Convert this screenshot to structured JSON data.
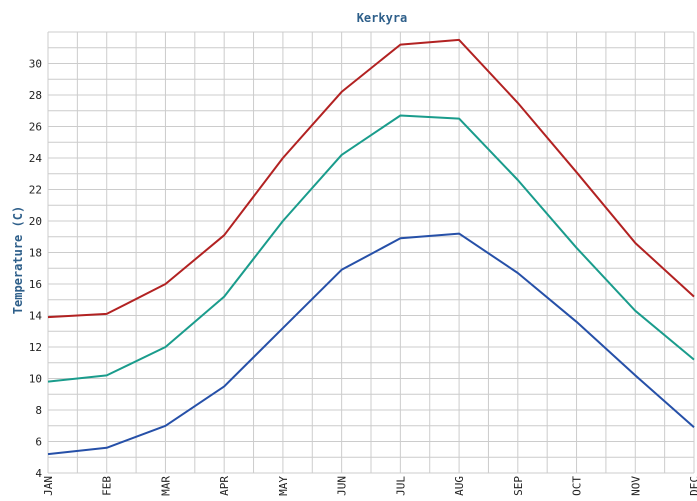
{
  "chart_data": {
    "type": "line",
    "title": "Kerkyra",
    "xlabel": "",
    "ylabel": "Temperature (C)",
    "categories": [
      "JAN",
      "FEB",
      "MAR",
      "APR",
      "MAY",
      "JUN",
      "JUL",
      "AUG",
      "SEP",
      "OCT",
      "NOV",
      "DEC"
    ],
    "xtick_labels": [
      "JAN",
      "FEB",
      "MAR",
      "APR",
      "MAY",
      "JUN",
      "JUL",
      "AUG",
      "SEP",
      "OCT",
      "NOV",
      "DEC"
    ],
    "ylim": [
      4,
      32
    ],
    "yticks": [
      4,
      6,
      8,
      10,
      12,
      14,
      16,
      18,
      20,
      22,
      24,
      26,
      28,
      30
    ],
    "grid": true,
    "legend": "none",
    "series": [
      {
        "color": "#b22222",
        "values": [
          13.9,
          14.1,
          16.0,
          19.1,
          24.0,
          28.2,
          31.2,
          31.5,
          27.5,
          23.1,
          18.6,
          15.2
        ]
      },
      {
        "color": "#1a9c8c",
        "values": [
          9.8,
          10.2,
          12.0,
          15.2,
          20.0,
          24.2,
          26.7,
          26.5,
          22.6,
          18.3,
          14.3,
          11.2
        ]
      },
      {
        "color": "#2650a8",
        "values": [
          5.2,
          5.6,
          7.0,
          9.5,
          13.2,
          16.9,
          18.9,
          19.2,
          16.7,
          13.6,
          10.2,
          6.9
        ]
      }
    ]
  }
}
